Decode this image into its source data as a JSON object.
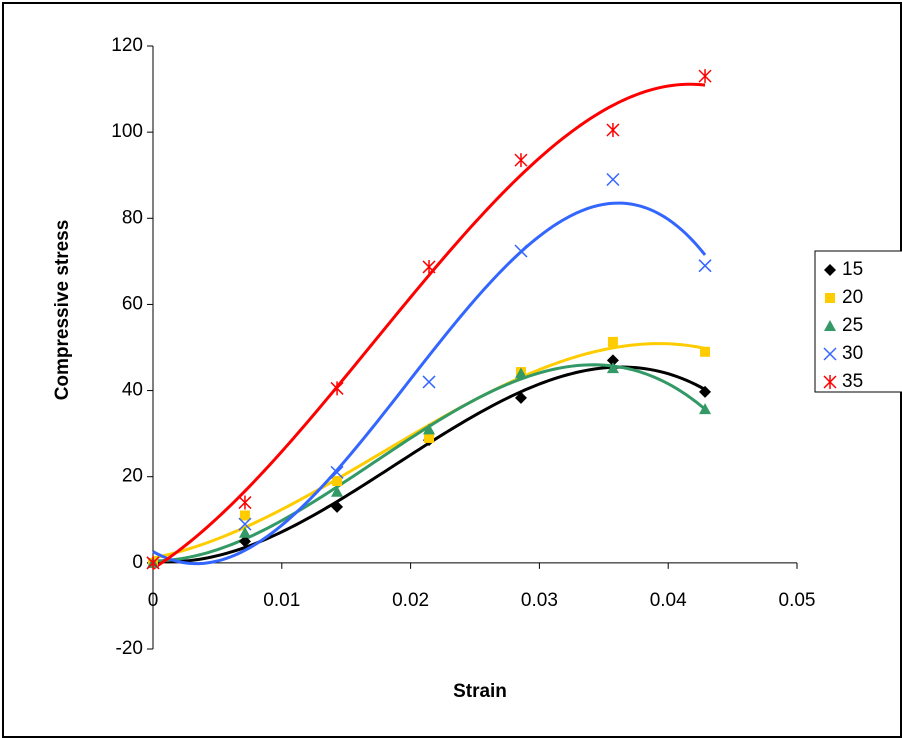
{
  "chart_data": {
    "type": "scatter",
    "x_label": "Strain",
    "y_label": "Compressive stress",
    "x": [
      0,
      0.00714,
      0.01429,
      0.02143,
      0.02857,
      0.03571,
      0.04286
    ],
    "series": [
      {
        "name": "15",
        "color": "#000000",
        "marker": "diamond",
        "values": [
          0,
          5,
          13,
          28.5,
          38.3,
          47,
          39.7
        ]
      },
      {
        "name": "20",
        "color": "#ffcc00",
        "marker": "square",
        "values": [
          0,
          11,
          19,
          29,
          44.3,
          51.3,
          49
        ]
      },
      {
        "name": "25",
        "color": "#339966",
        "marker": "triangle",
        "values": [
          0,
          7,
          16.5,
          31,
          44,
          45.2,
          35.7
        ]
      },
      {
        "name": "30",
        "color": "#3366ff",
        "marker": "x",
        "values": [
          0,
          9,
          21,
          42,
          72.4,
          89,
          69
        ]
      },
      {
        "name": "35",
        "color": "#ff0000",
        "marker": "star",
        "values": [
          0,
          14,
          40.5,
          68.7,
          93.5,
          100.5,
          113
        ]
      }
    ],
    "trendline_order": 3,
    "xlim": [
      0,
      0.05
    ],
    "xticks": [
      0,
      0.01,
      0.02,
      0.03,
      0.04,
      0.05
    ],
    "ylim": [
      -20,
      120
    ],
    "yticks": [
      -20,
      0,
      20,
      40,
      60,
      80,
      100,
      120
    ],
    "grid": false,
    "legend": "right"
  }
}
